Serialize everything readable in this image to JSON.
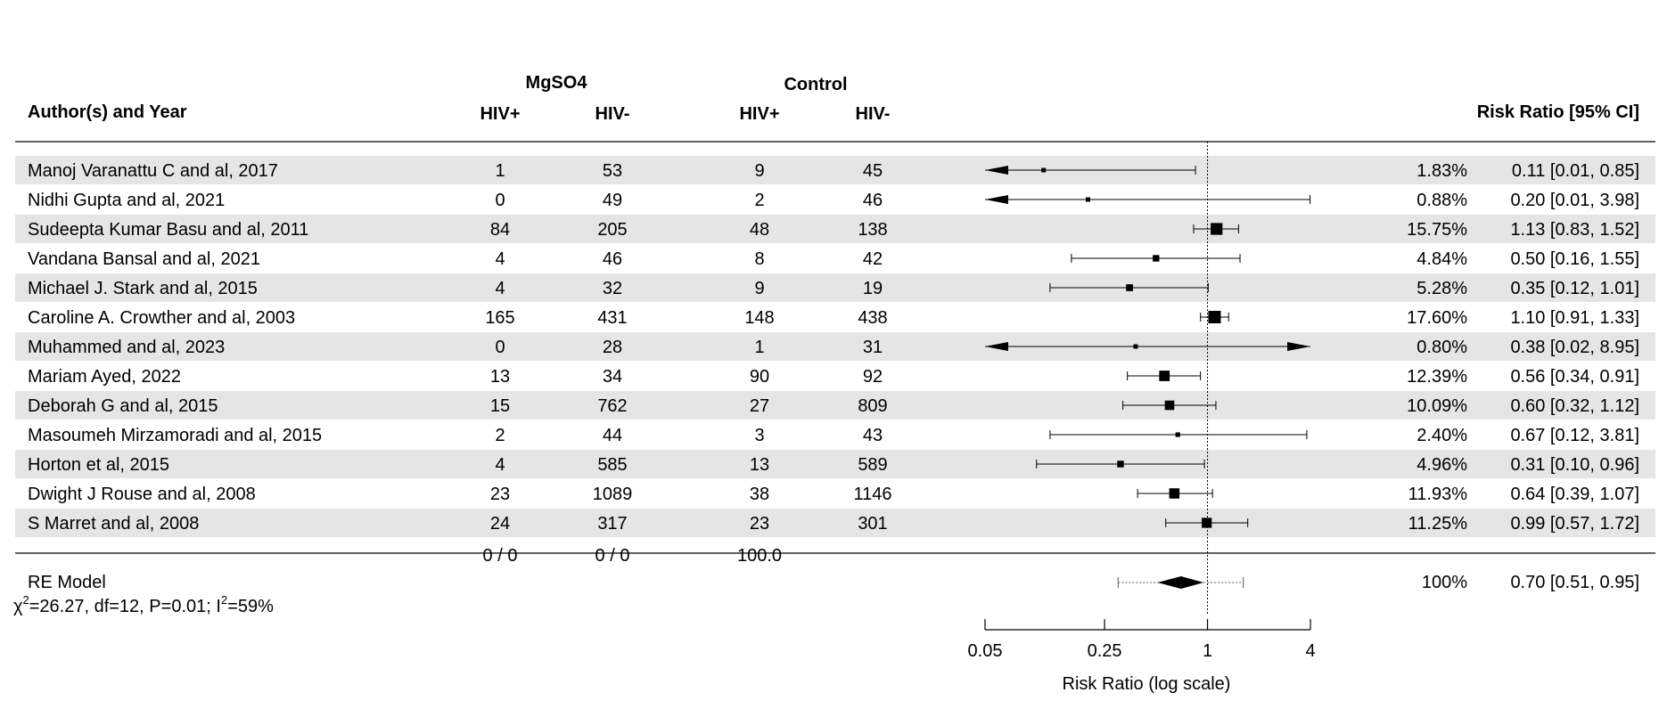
{
  "chart_data": {
    "type": "forest",
    "headers": {
      "study": "Author(s) and Year",
      "group1": "MgSO4",
      "group2": "Control",
      "sub_pos": "HIV+",
      "sub_neg": "HIV-",
      "effect": "Risk Ratio [95% CI]"
    },
    "studies": [
      {
        "label": "Manoj Varanattu C and al, 2017",
        "mg_pos": "1",
        "mg_neg": "53",
        "ctrl_pos": "9",
        "ctrl_neg": "45",
        "weight": "1.83%",
        "ci_text": "0.11 [0.01, 0.85]",
        "rr": 0.11,
        "lo": 0.01,
        "hi": 0.85
      },
      {
        "label": "Nidhi Gupta and al, 2021",
        "mg_pos": "0",
        "mg_neg": "49",
        "ctrl_pos": "2",
        "ctrl_neg": "46",
        "weight": "0.88%",
        "ci_text": "0.20 [0.01, 3.98]",
        "rr": 0.2,
        "lo": 0.01,
        "hi": 3.98
      },
      {
        "label": "Sudeepta Kumar Basu and al, 2011",
        "mg_pos": "84",
        "mg_neg": "205",
        "ctrl_pos": "48",
        "ctrl_neg": "138",
        "weight": "15.75%",
        "ci_text": "1.13 [0.83, 1.52]",
        "rr": 1.13,
        "lo": 0.83,
        "hi": 1.52
      },
      {
        "label": "Vandana Bansal and al, 2021",
        "mg_pos": "4",
        "mg_neg": "46",
        "ctrl_pos": "8",
        "ctrl_neg": "42",
        "weight": "4.84%",
        "ci_text": "0.50 [0.16, 1.55]",
        "rr": 0.5,
        "lo": 0.16,
        "hi": 1.55
      },
      {
        "label": "Michael J. Stark and al, 2015",
        "mg_pos": "4",
        "mg_neg": "32",
        "ctrl_pos": "9",
        "ctrl_neg": "19",
        "weight": "5.28%",
        "ci_text": "0.35 [0.12, 1.01]",
        "rr": 0.35,
        "lo": 0.12,
        "hi": 1.01
      },
      {
        "label": "Caroline A. Crowther and al, 2003",
        "mg_pos": "165",
        "mg_neg": "431",
        "ctrl_pos": "148",
        "ctrl_neg": "438",
        "weight": "17.60%",
        "ci_text": "1.10 [0.91, 1.33]",
        "rr": 1.1,
        "lo": 0.91,
        "hi": 1.33
      },
      {
        "label": "Muhammed and al, 2023",
        "mg_pos": "0",
        "mg_neg": "28",
        "ctrl_pos": "1",
        "ctrl_neg": "31",
        "weight": "0.80%",
        "ci_text": "0.38 [0.02, 8.95]",
        "rr": 0.38,
        "lo": 0.02,
        "hi": 8.95
      },
      {
        "label": "Mariam Ayed, 2022",
        "mg_pos": "13",
        "mg_neg": "34",
        "ctrl_pos": "90",
        "ctrl_neg": "92",
        "weight": "12.39%",
        "ci_text": "0.56 [0.34, 0.91]",
        "rr": 0.56,
        "lo": 0.34,
        "hi": 0.91
      },
      {
        "label": "Deborah G and al, 2015",
        "mg_pos": "15",
        "mg_neg": "762",
        "ctrl_pos": "27",
        "ctrl_neg": "809",
        "weight": "10.09%",
        "ci_text": "0.60 [0.32, 1.12]",
        "rr": 0.6,
        "lo": 0.32,
        "hi": 1.12
      },
      {
        "label": "Masoumeh Mirzamoradi and al, 2015",
        "mg_pos": "2",
        "mg_neg": "44",
        "ctrl_pos": "3",
        "ctrl_neg": "43",
        "weight": "2.40%",
        "ci_text": "0.67 [0.12, 3.81]",
        "rr": 0.67,
        "lo": 0.12,
        "hi": 3.81
      },
      {
        "label": "Horton et al, 2015",
        "mg_pos": "4",
        "mg_neg": "585",
        "ctrl_pos": "13",
        "ctrl_neg": "589",
        "weight": "4.96%",
        "ci_text": "0.31 [0.10, 0.96]",
        "rr": 0.31,
        "lo": 0.1,
        "hi": 0.96
      },
      {
        "label": "Dwight J Rouse and al, 2008",
        "mg_pos": "23",
        "mg_neg": "1089",
        "ctrl_pos": "38",
        "ctrl_neg": "1146",
        "weight": "11.93%",
        "ci_text": "0.64 [0.39, 1.07]",
        "rr": 0.64,
        "lo": 0.39,
        "hi": 1.07
      },
      {
        "label": "S Marret and al, 2008",
        "mg_pos": "24",
        "mg_neg": "317",
        "ctrl_pos": "23",
        "ctrl_neg": "301",
        "weight": "11.25%",
        "ci_text": "0.99 [0.57, 1.72]",
        "rr": 0.99,
        "lo": 0.57,
        "hi": 1.72
      }
    ],
    "totals": {
      "mg_pos": "0 / 0",
      "mg_neg": "0 / 0",
      "ctrl_pos": "100.0"
    },
    "summary": {
      "label": "RE Model",
      "weight": "100%",
      "ci_text": "0.70 [0.51, 0.95]",
      "rr": 0.7,
      "lo": 0.51,
      "hi": 0.95,
      "pi_lo": 0.3,
      "pi_hi": 1.62,
      "heterogeneity": {
        "chi": "χ",
        "sup1": "2",
        "mid": "=26.27, df=12, P=0.01; I",
        "sup2": "2",
        "end": "=59%"
      }
    },
    "xaxis": {
      "scale": "log",
      "xlim": [
        0.05,
        4
      ],
      "ticks": [
        {
          "value": 0.05,
          "label": "0.05"
        },
        {
          "value": 0.25,
          "label": "0.25"
        },
        {
          "value": 1,
          "label": "1"
        },
        {
          "value": 4,
          "label": "4"
        }
      ],
      "label": "Risk Ratio (log scale)",
      "reference_line": 1
    }
  }
}
